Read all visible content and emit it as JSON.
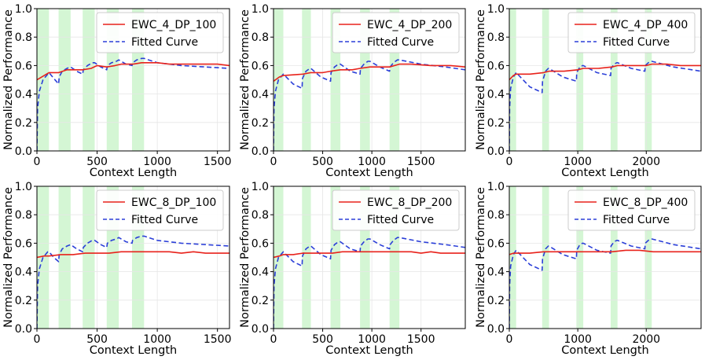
{
  "figure": {
    "ylabel": "Normalized Performance",
    "xlabel": "Context Length"
  },
  "chart_data": [
    {
      "type": "line",
      "title": "EWC_4_DP_100",
      "xlabel": "Context Length",
      "ylabel": "Normalized Performance",
      "xlim": [
        0,
        1600
      ],
      "ylim": [
        0,
        1.0
      ],
      "xticks": [
        0,
        500,
        1000,
        1500
      ],
      "yticks": [
        0.0,
        0.2,
        0.4,
        0.6,
        0.8,
        1.0
      ],
      "demo_spans": [
        [
          0,
          100
        ],
        [
          180,
          280
        ],
        [
          380,
          480
        ],
        [
          580,
          680
        ],
        [
          790,
          890
        ]
      ],
      "legend": [
        "EWC_4_DP_100",
        "Fitted Curve"
      ],
      "legend_loc": "top-right",
      "series": [
        {
          "name": "EWC_4_DP_100",
          "color": "#e8221b",
          "style": "solid",
          "x": [
            0,
            60,
            100,
            180,
            250,
            300,
            380,
            450,
            500,
            580,
            650,
            700,
            800,
            870,
            950,
            1000,
            1100,
            1200,
            1300,
            1400,
            1500,
            1600
          ],
          "y": [
            0.5,
            0.53,
            0.55,
            0.55,
            0.57,
            0.57,
            0.57,
            0.58,
            0.6,
            0.59,
            0.6,
            0.61,
            0.61,
            0.62,
            0.62,
            0.62,
            0.61,
            0.61,
            0.61,
            0.61,
            0.61,
            0.6
          ]
        },
        {
          "name": "Fitted Curve",
          "color": "#2b3fd8",
          "style": "dashed",
          "x": [
            0,
            5,
            20,
            50,
            100,
            140,
            180,
            185,
            210,
            250,
            280,
            330,
            380,
            385,
            420,
            460,
            480,
            530,
            580,
            585,
            620,
            660,
            680,
            740,
            790,
            795,
            830,
            870,
            890,
            1000,
            1200,
            1400,
            1600
          ],
          "y": [
            0.0,
            0.3,
            0.42,
            0.5,
            0.55,
            0.51,
            0.47,
            0.52,
            0.56,
            0.58,
            0.59,
            0.56,
            0.54,
            0.57,
            0.6,
            0.62,
            0.62,
            0.59,
            0.57,
            0.6,
            0.62,
            0.63,
            0.64,
            0.61,
            0.6,
            0.62,
            0.64,
            0.65,
            0.65,
            0.62,
            0.6,
            0.59,
            0.58
          ]
        }
      ]
    },
    {
      "type": "line",
      "title": "EWC_4_DP_200",
      "xlabel": "Context Length",
      "ylabel": "Normalized Performance",
      "xlim": [
        0,
        1950
      ],
      "ylim": [
        0,
        1.0
      ],
      "xticks": [
        0,
        500,
        1000,
        1500
      ],
      "yticks": [
        0.0,
        0.2,
        0.4,
        0.6,
        0.8,
        1.0
      ],
      "demo_spans": [
        [
          0,
          100
        ],
        [
          290,
          380
        ],
        [
          580,
          680
        ],
        [
          880,
          980
        ],
        [
          1180,
          1280
        ]
      ],
      "legend": [
        "EWC_4_DP_200",
        "Fitted Curve"
      ],
      "legend_loc": "top-right",
      "series": [
        {
          "name": "EWC_4_DP_200",
          "color": "#e8221b",
          "style": "solid",
          "x": [
            0,
            60,
            100,
            300,
            380,
            500,
            580,
            680,
            800,
            880,
            980,
            1100,
            1180,
            1280,
            1400,
            1600,
            1800,
            1950
          ],
          "y": [
            0.49,
            0.52,
            0.53,
            0.54,
            0.55,
            0.55,
            0.56,
            0.57,
            0.57,
            0.58,
            0.59,
            0.59,
            0.59,
            0.61,
            0.61,
            0.6,
            0.6,
            0.59
          ]
        },
        {
          "name": "Fitted Curve",
          "color": "#2b3fd8",
          "style": "dashed",
          "x": [
            0,
            5,
            20,
            50,
            100,
            200,
            290,
            295,
            330,
            370,
            380,
            480,
            580,
            585,
            620,
            660,
            680,
            780,
            880,
            885,
            920,
            960,
            980,
            1080,
            1180,
            1185,
            1220,
            1260,
            1280,
            1500,
            1750,
            1950
          ],
          "y": [
            0.0,
            0.3,
            0.42,
            0.5,
            0.54,
            0.47,
            0.44,
            0.51,
            0.56,
            0.58,
            0.58,
            0.52,
            0.49,
            0.55,
            0.59,
            0.61,
            0.61,
            0.56,
            0.54,
            0.58,
            0.61,
            0.63,
            0.63,
            0.59,
            0.56,
            0.59,
            0.62,
            0.64,
            0.64,
            0.61,
            0.59,
            0.57
          ]
        }
      ]
    },
    {
      "type": "line",
      "title": "EWC_4_DP_400",
      "xlabel": "Context Length",
      "ylabel": "Normalized Performance",
      "xlim": [
        0,
        2800
      ],
      "ylim": [
        0,
        1.0
      ],
      "xticks": [
        0,
        1000,
        2000
      ],
      "yticks": [
        0.0,
        0.2,
        0.4,
        0.6,
        0.8,
        1.0
      ],
      "demo_spans": [
        [
          0,
          100
        ],
        [
          480,
          580
        ],
        [
          980,
          1080
        ],
        [
          1480,
          1580
        ],
        [
          1980,
          2080
        ]
      ],
      "legend": [
        "EWC_4_DP_400",
        "Fitted Curve"
      ],
      "legend_loc": "top-right",
      "series": [
        {
          "name": "EWC_4_DP_400",
          "color": "#e8221b",
          "style": "solid",
          "x": [
            0,
            60,
            100,
            300,
            500,
            580,
            800,
            1000,
            1080,
            1300,
            1500,
            1580,
            1800,
            2000,
            2080,
            2300,
            2500,
            2800
          ],
          "y": [
            0.5,
            0.53,
            0.54,
            0.54,
            0.55,
            0.56,
            0.56,
            0.57,
            0.58,
            0.58,
            0.59,
            0.6,
            0.6,
            0.6,
            0.61,
            0.61,
            0.6,
            0.6
          ]
        },
        {
          "name": "Fitted Curve",
          "color": "#2b3fd8",
          "style": "dashed",
          "x": [
            0,
            5,
            20,
            60,
            100,
            300,
            480,
            485,
            530,
            570,
            580,
            780,
            980,
            985,
            1030,
            1070,
            1080,
            1280,
            1480,
            1485,
            1530,
            1570,
            1580,
            1780,
            1980,
            1985,
            2030,
            2070,
            2080,
            2400,
            2800
          ],
          "y": [
            0.0,
            0.3,
            0.44,
            0.52,
            0.55,
            0.45,
            0.41,
            0.49,
            0.56,
            0.58,
            0.58,
            0.52,
            0.49,
            0.55,
            0.59,
            0.6,
            0.6,
            0.55,
            0.53,
            0.58,
            0.61,
            0.62,
            0.62,
            0.58,
            0.56,
            0.6,
            0.62,
            0.63,
            0.63,
            0.59,
            0.56
          ]
        }
      ]
    },
    {
      "type": "line",
      "title": "EWC_8_DP_100",
      "xlabel": "Context Length",
      "ylabel": "Normalized Performance",
      "xlim": [
        0,
        1600
      ],
      "ylim": [
        0,
        1.0
      ],
      "xticks": [
        0,
        500,
        1000,
        1500
      ],
      "yticks": [
        0.0,
        0.2,
        0.4,
        0.6,
        0.8,
        1.0
      ],
      "demo_spans": [
        [
          0,
          100
        ],
        [
          180,
          280
        ],
        [
          380,
          480
        ],
        [
          580,
          680
        ],
        [
          790,
          890
        ]
      ],
      "legend": [
        "EWC_8_DP_100",
        "Fitted Curve"
      ],
      "legend_loc": "top-right",
      "series": [
        {
          "name": "EWC_8_DP_100",
          "color": "#e8221b",
          "style": "solid",
          "x": [
            0,
            60,
            100,
            200,
            300,
            400,
            500,
            600,
            700,
            800,
            900,
            1000,
            1100,
            1200,
            1300,
            1400,
            1500,
            1600
          ],
          "y": [
            0.5,
            0.51,
            0.51,
            0.52,
            0.52,
            0.53,
            0.53,
            0.53,
            0.54,
            0.54,
            0.54,
            0.54,
            0.54,
            0.53,
            0.54,
            0.53,
            0.53,
            0.53
          ]
        },
        {
          "name": "Fitted Curve",
          "color": "#2b3fd8",
          "style": "dashed",
          "x": [
            0,
            5,
            20,
            50,
            90,
            100,
            140,
            180,
            185,
            210,
            250,
            280,
            330,
            380,
            385,
            420,
            460,
            480,
            530,
            580,
            585,
            620,
            660,
            680,
            740,
            790,
            795,
            830,
            870,
            890,
            1000,
            1200,
            1400,
            1600
          ],
          "y": [
            0.0,
            0.3,
            0.42,
            0.5,
            0.54,
            0.54,
            0.5,
            0.47,
            0.52,
            0.56,
            0.58,
            0.59,
            0.56,
            0.54,
            0.57,
            0.6,
            0.62,
            0.62,
            0.59,
            0.57,
            0.6,
            0.62,
            0.63,
            0.64,
            0.61,
            0.6,
            0.62,
            0.64,
            0.65,
            0.65,
            0.62,
            0.6,
            0.59,
            0.58
          ]
        }
      ]
    },
    {
      "type": "line",
      "title": "EWC_8_DP_200",
      "xlabel": "Context Length",
      "ylabel": "Normalized Performance",
      "xlim": [
        0,
        1950
      ],
      "ylim": [
        0,
        1.0
      ],
      "xticks": [
        0,
        500,
        1000,
        1500
      ],
      "yticks": [
        0.0,
        0.2,
        0.4,
        0.6,
        0.8,
        1.0
      ],
      "demo_spans": [
        [
          0,
          100
        ],
        [
          290,
          380
        ],
        [
          580,
          680
        ],
        [
          880,
          980
        ],
        [
          1180,
          1280
        ]
      ],
      "legend": [
        "EWC_8_DP_200",
        "Fitted Curve"
      ],
      "legend_loc": "top-right",
      "series": [
        {
          "name": "EWC_8_DP_200",
          "color": "#e8221b",
          "style": "solid",
          "x": [
            0,
            60,
            100,
            200,
            300,
            400,
            500,
            600,
            700,
            800,
            900,
            1000,
            1100,
            1200,
            1300,
            1400,
            1500,
            1600,
            1700,
            1800,
            1950
          ],
          "y": [
            0.5,
            0.51,
            0.52,
            0.52,
            0.53,
            0.53,
            0.53,
            0.53,
            0.54,
            0.54,
            0.54,
            0.54,
            0.54,
            0.54,
            0.54,
            0.54,
            0.53,
            0.54,
            0.53,
            0.53,
            0.53
          ]
        },
        {
          "name": "Fitted Curve",
          "color": "#2b3fd8",
          "style": "dashed",
          "x": [
            0,
            5,
            20,
            50,
            100,
            200,
            290,
            295,
            330,
            370,
            380,
            480,
            580,
            585,
            620,
            660,
            680,
            780,
            880,
            885,
            920,
            960,
            980,
            1080,
            1180,
            1185,
            1220,
            1260,
            1280,
            1500,
            1750,
            1950
          ],
          "y": [
            0.0,
            0.3,
            0.42,
            0.5,
            0.54,
            0.47,
            0.44,
            0.51,
            0.56,
            0.58,
            0.58,
            0.52,
            0.49,
            0.55,
            0.59,
            0.61,
            0.61,
            0.56,
            0.54,
            0.58,
            0.61,
            0.63,
            0.63,
            0.59,
            0.56,
            0.59,
            0.62,
            0.64,
            0.64,
            0.61,
            0.59,
            0.57
          ]
        }
      ]
    },
    {
      "type": "line",
      "title": "EWC_8_DP_400",
      "xlabel": "Context Length",
      "ylabel": "Normalized Performance",
      "xlim": [
        0,
        2800
      ],
      "ylim": [
        0,
        1.0
      ],
      "xticks": [
        0,
        1000,
        2000
      ],
      "yticks": [
        0.0,
        0.2,
        0.4,
        0.6,
        0.8,
        1.0
      ],
      "demo_spans": [
        [
          0,
          100
        ],
        [
          480,
          580
        ],
        [
          980,
          1080
        ],
        [
          1480,
          1580
        ],
        [
          1980,
          2080
        ]
      ],
      "legend": [
        "EWC_8_DP_400",
        "Fitted Curve"
      ],
      "legend_loc": "top-right",
      "series": [
        {
          "name": "EWC_8_DP_400",
          "color": "#e8221b",
          "style": "solid",
          "x": [
            0,
            60,
            100,
            300,
            500,
            700,
            900,
            1100,
            1300,
            1500,
            1700,
            1900,
            2100,
            2300,
            2500,
            2700,
            2800
          ],
          "y": [
            0.52,
            0.53,
            0.53,
            0.53,
            0.54,
            0.54,
            0.54,
            0.54,
            0.54,
            0.54,
            0.55,
            0.55,
            0.54,
            0.54,
            0.54,
            0.54,
            0.54
          ]
        },
        {
          "name": "Fitted Curve",
          "color": "#2b3fd8",
          "style": "dashed",
          "x": [
            0,
            5,
            20,
            60,
            100,
            300,
            480,
            485,
            530,
            570,
            580,
            780,
            980,
            985,
            1030,
            1070,
            1080,
            1280,
            1480,
            1485,
            1530,
            1570,
            1580,
            1780,
            1980,
            1985,
            2030,
            2070,
            2080,
            2400,
            2800
          ],
          "y": [
            0.0,
            0.3,
            0.44,
            0.52,
            0.55,
            0.45,
            0.41,
            0.49,
            0.56,
            0.58,
            0.58,
            0.52,
            0.49,
            0.55,
            0.59,
            0.6,
            0.6,
            0.55,
            0.53,
            0.58,
            0.61,
            0.62,
            0.62,
            0.58,
            0.56,
            0.6,
            0.62,
            0.63,
            0.63,
            0.59,
            0.56
          ]
        }
      ]
    }
  ]
}
